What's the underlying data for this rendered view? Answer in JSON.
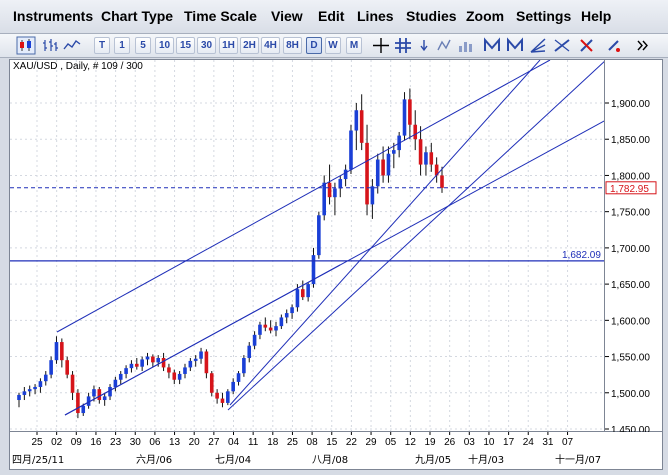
{
  "menu": [
    {
      "label": "Instruments"
    },
    {
      "label": "Chart Type"
    },
    {
      "label": "Time Scale"
    },
    {
      "label": "View"
    },
    {
      "label": "Edit"
    },
    {
      "label": "Lines"
    },
    {
      "label": "Studies"
    },
    {
      "label": "Zoom"
    },
    {
      "label": "Settings"
    },
    {
      "label": "Help"
    }
  ],
  "toolbar": {
    "chart_type_icons": [
      "candlestick-icon",
      "bar-chart-icon",
      "line-chart-icon"
    ],
    "intervals": [
      "T",
      "1",
      "5",
      "10",
      "15",
      "30",
      "1H",
      "2H",
      "4H",
      "8H",
      "D",
      "W",
      "M"
    ],
    "active_interval": "D",
    "tool_icons": [
      "crosshair-icon",
      "grid-icon",
      "arrow-icon",
      "line-study-icon",
      "bar-study-icon",
      "trend-up-icon",
      "trend-down-icon",
      "fan-icon",
      "trendline-icon",
      "hide-icon",
      "more-icon"
    ]
  },
  "chart": {
    "symbol_label": "XAU/USD , Daily, # 109 / 300",
    "price_marker": "1,782.95",
    "h_line_label": "1,682.09"
  },
  "chart_data": {
    "type": "candlestick",
    "instrument": "XAU/USD",
    "timeframe": "Daily",
    "y_ticks": [
      "1,900.00",
      "1,850.00",
      "1,800.00",
      "1,750.00",
      "1,700.00",
      "1,650.00",
      "1,600.00",
      "1,550.00",
      "1,500.00",
      "1,450.00"
    ],
    "ylim": [
      1450,
      1935
    ],
    "x_ticks": [
      "25",
      "02",
      "09",
      "16",
      "23",
      "30",
      "06",
      "13",
      "20",
      "27",
      "04",
      "11",
      "18",
      "25",
      "08",
      "15",
      "22",
      "29",
      "05",
      "12",
      "19",
      "26",
      "03",
      "10",
      "17",
      "24",
      "31",
      "07"
    ],
    "x_month_labels": [
      "四月/25/11",
      "六月/06",
      "七月/04",
      "八月/08",
      "九月/05",
      "十月/03",
      "十一月/07"
    ],
    "current_price": 1782.95,
    "horizontal_line": 1682.09,
    "candles": [
      [
        1490,
        1500,
        1480,
        1497
      ],
      [
        1497,
        1508,
        1490,
        1502
      ],
      [
        1502,
        1510,
        1495,
        1505
      ],
      [
        1505,
        1512,
        1498,
        1508
      ],
      [
        1508,
        1520,
        1500,
        1516
      ],
      [
        1516,
        1530,
        1510,
        1525
      ],
      [
        1525,
        1550,
        1520,
        1545
      ],
      [
        1545,
        1578,
        1540,
        1570
      ],
      [
        1570,
        1575,
        1535,
        1545
      ],
      [
        1545,
        1550,
        1520,
        1525
      ],
      [
        1525,
        1530,
        1490,
        1500
      ],
      [
        1500,
        1505,
        1465,
        1472
      ],
      [
        1472,
        1485,
        1468,
        1482
      ],
      [
        1482,
        1500,
        1478,
        1495
      ],
      [
        1495,
        1510,
        1488,
        1505
      ],
      [
        1505,
        1508,
        1485,
        1490
      ],
      [
        1490,
        1500,
        1482,
        1495
      ],
      [
        1495,
        1512,
        1490,
        1508
      ],
      [
        1508,
        1522,
        1502,
        1518
      ],
      [
        1518,
        1530,
        1512,
        1526
      ],
      [
        1526,
        1538,
        1520,
        1534
      ],
      [
        1534,
        1545,
        1528,
        1540
      ],
      [
        1540,
        1548,
        1532,
        1536
      ],
      [
        1536,
        1550,
        1530,
        1546
      ],
      [
        1546,
        1555,
        1538,
        1550
      ],
      [
        1550,
        1553,
        1535,
        1542
      ],
      [
        1542,
        1552,
        1536,
        1548
      ],
      [
        1548,
        1555,
        1530,
        1535
      ],
      [
        1535,
        1540,
        1520,
        1528
      ],
      [
        1528,
        1532,
        1512,
        1518
      ],
      [
        1518,
        1530,
        1512,
        1526
      ],
      [
        1526,
        1540,
        1520,
        1535
      ],
      [
        1535,
        1548,
        1530,
        1544
      ],
      [
        1544,
        1552,
        1536,
        1547
      ],
      [
        1547,
        1562,
        1540,
        1557
      ],
      [
        1557,
        1560,
        1520,
        1527
      ],
      [
        1527,
        1530,
        1495,
        1500
      ],
      [
        1500,
        1505,
        1485,
        1492
      ],
      [
        1492,
        1500,
        1480,
        1486
      ],
      [
        1486,
        1505,
        1483,
        1502
      ],
      [
        1502,
        1520,
        1498,
        1515
      ],
      [
        1515,
        1530,
        1510,
        1527
      ],
      [
        1527,
        1552,
        1522,
        1548
      ],
      [
        1548,
        1570,
        1542,
        1565
      ],
      [
        1565,
        1585,
        1560,
        1580
      ],
      [
        1580,
        1598,
        1574,
        1594
      ],
      [
        1594,
        1604,
        1585,
        1590
      ],
      [
        1590,
        1600,
        1582,
        1586
      ],
      [
        1586,
        1598,
        1578,
        1592
      ],
      [
        1592,
        1608,
        1588,
        1604
      ],
      [
        1604,
        1615,
        1596,
        1610
      ],
      [
        1610,
        1622,
        1602,
        1618
      ],
      [
        1618,
        1650,
        1612,
        1643
      ],
      [
        1643,
        1655,
        1628,
        1632
      ],
      [
        1632,
        1652,
        1626,
        1650
      ],
      [
        1650,
        1700,
        1645,
        1690
      ],
      [
        1690,
        1750,
        1685,
        1745
      ],
      [
        1745,
        1800,
        1738,
        1790
      ],
      [
        1790,
        1815,
        1760,
        1770
      ],
      [
        1770,
        1790,
        1745,
        1782
      ],
      [
        1782,
        1800,
        1770,
        1795
      ],
      [
        1795,
        1815,
        1785,
        1808
      ],
      [
        1808,
        1870,
        1802,
        1862
      ],
      [
        1862,
        1900,
        1835,
        1890
      ],
      [
        1890,
        1912,
        1835,
        1845
      ],
      [
        1845,
        1870,
        1745,
        1760
      ],
      [
        1760,
        1795,
        1740,
        1785
      ],
      [
        1785,
        1830,
        1775,
        1822
      ],
      [
        1822,
        1840,
        1790,
        1800
      ],
      [
        1800,
        1840,
        1790,
        1830
      ],
      [
        1830,
        1845,
        1810,
        1835
      ],
      [
        1835,
        1860,
        1825,
        1855
      ],
      [
        1855,
        1915,
        1848,
        1905
      ],
      [
        1905,
        1920,
        1850,
        1870
      ],
      [
        1870,
        1890,
        1835,
        1850
      ],
      [
        1850,
        1868,
        1800,
        1815
      ],
      [
        1815,
        1840,
        1800,
        1832
      ],
      [
        1832,
        1845,
        1805,
        1815
      ],
      [
        1815,
        1825,
        1790,
        1800
      ],
      [
        1800,
        1812,
        1776,
        1782.95
      ]
    ]
  }
}
